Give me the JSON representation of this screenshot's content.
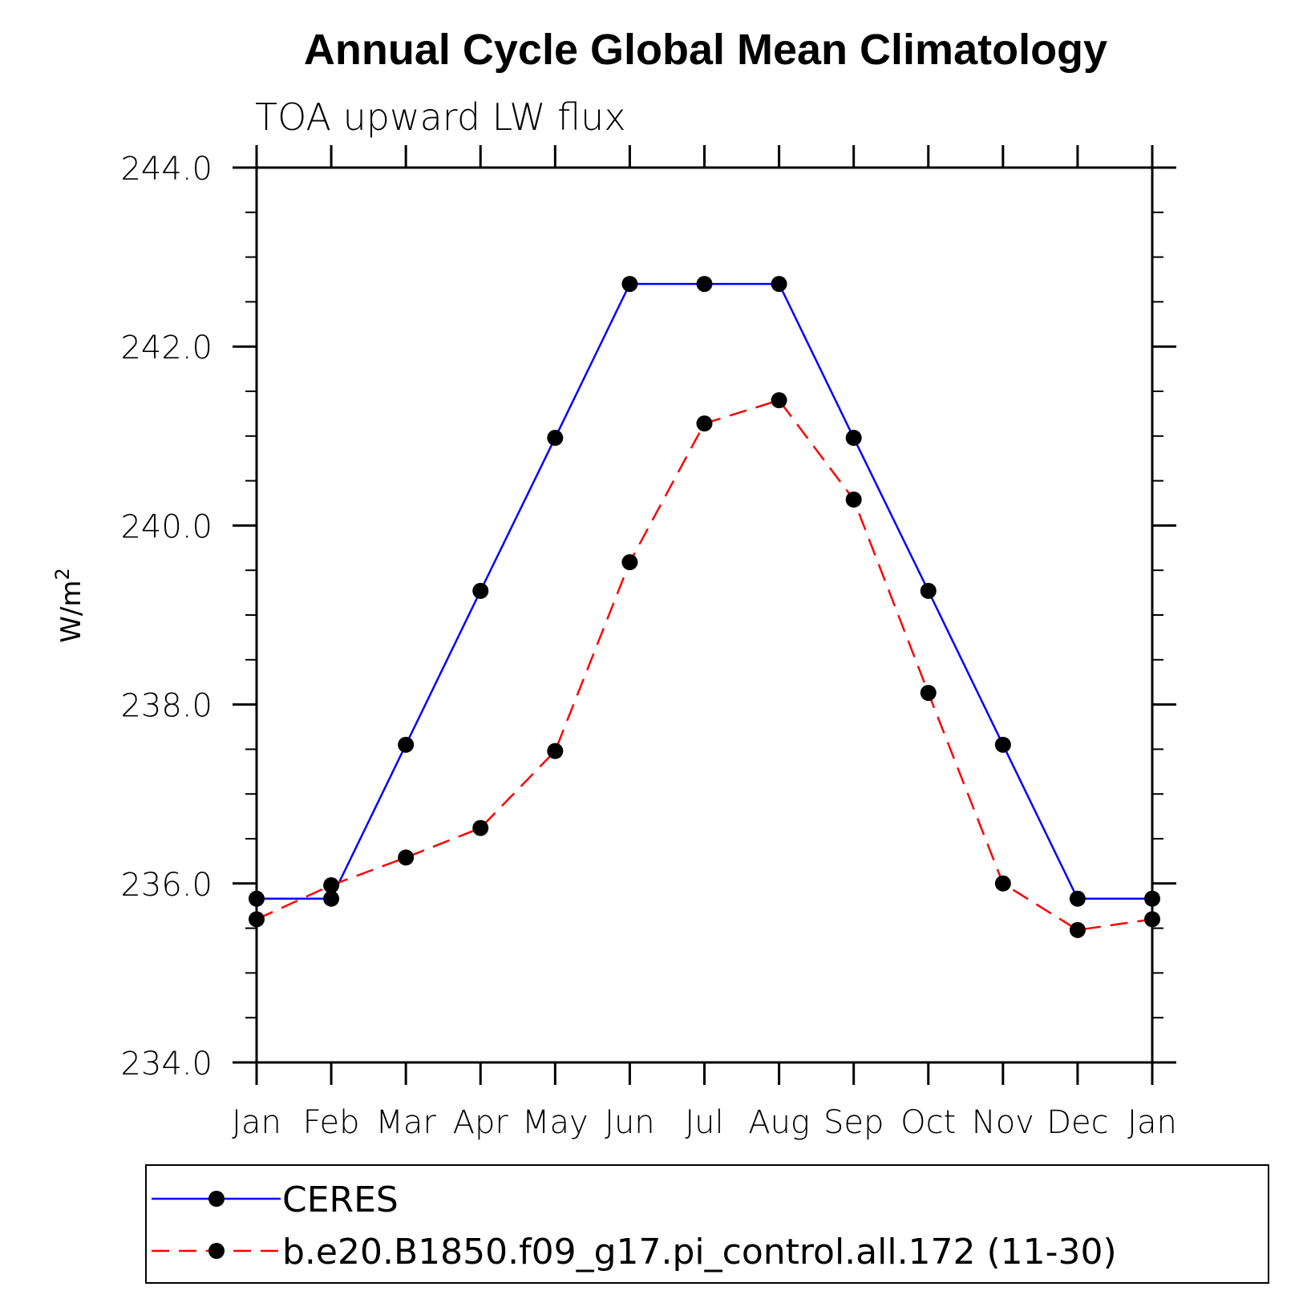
{
  "chart_data": {
    "type": "line",
    "title": "Annual Cycle Global Mean Climatology",
    "subtitle": "TOA upward LW flux",
    "ylabel_base": "W/m",
    "ylabel_sup": "2",
    "categories": [
      "Jan",
      "Feb",
      "Mar",
      "Apr",
      "May",
      "Jun",
      "Jul",
      "Aug",
      "Sep",
      "Oct",
      "Nov",
      "Dec",
      "Jan"
    ],
    "ylim": [
      234.0,
      244.0
    ],
    "yticks": [
      234.0,
      236.0,
      238.0,
      240.0,
      242.0,
      244.0
    ],
    "ytick_labels": [
      "234.0",
      "236.0",
      "238.0",
      "240.0",
      "242.0",
      "244.0"
    ],
    "grid": false,
    "legend_position": "bottom",
    "series": [
      {
        "name": "CERES",
        "color": "#0000ff",
        "dash": "solid",
        "values": [
          235.83,
          235.83,
          237.55,
          239.27,
          240.98,
          242.7,
          242.7,
          242.7,
          240.98,
          239.27,
          237.55,
          235.83,
          235.83
        ]
      },
      {
        "name": "b.e20.B1850.f09_g17.pi_control.all.172 (11-30)",
        "color": "#ff0000",
        "dash": "dashed",
        "values": [
          235.6,
          235.98,
          236.29,
          236.62,
          237.48,
          239.59,
          241.14,
          241.4,
          240.29,
          238.13,
          236.0,
          235.48,
          235.6
        ]
      }
    ]
  }
}
